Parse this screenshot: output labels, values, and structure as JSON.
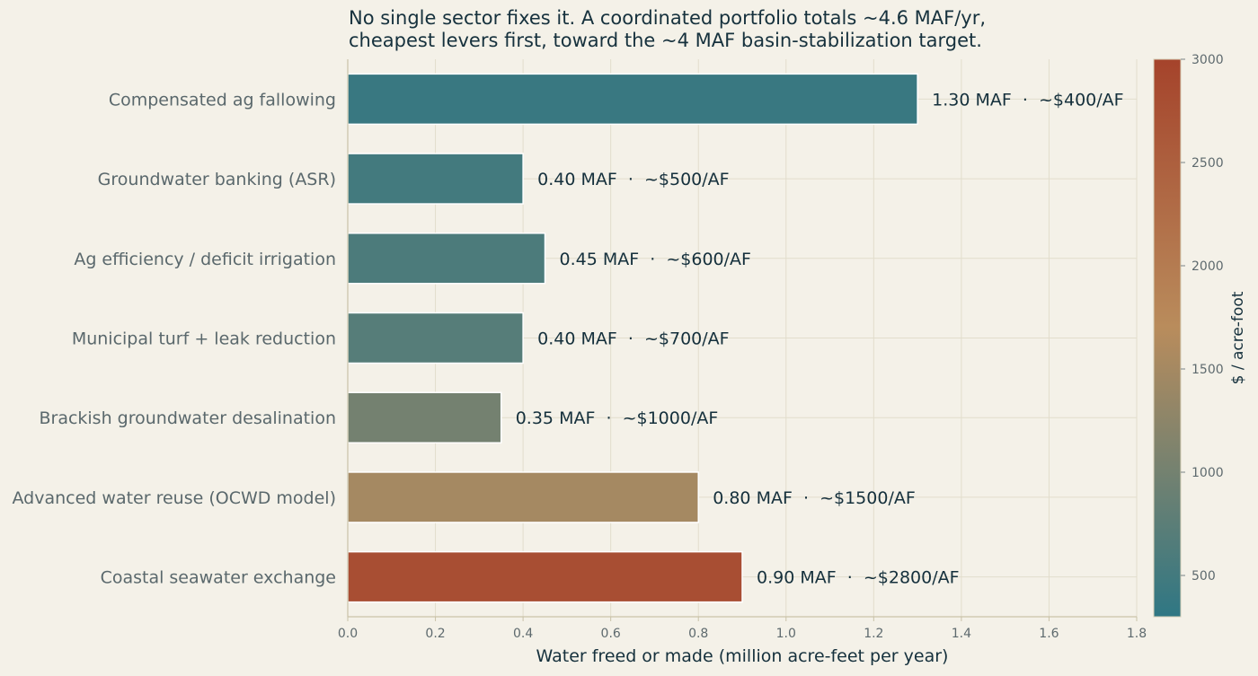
{
  "chart_data": {
    "type": "bar",
    "orientation": "horizontal",
    "title_lines": [
      "No single sector fixes it. A coordinated portfolio totals ~4.6 MAF/yr,",
      "cheapest levers first, toward the ~4 MAF basin-stabilization target."
    ],
    "xlabel": "Water freed or made (million acre-feet per year)",
    "ylabel": "",
    "xlim": [
      0,
      1.8
    ],
    "xticks": [
      "0.0",
      "0.2",
      "0.4",
      "0.6",
      "0.8",
      "1.0",
      "1.2",
      "1.4",
      "1.6",
      "1.8"
    ],
    "grid": true,
    "categories": [
      "Compensated ag fallowing",
      "Groundwater banking (ASR)",
      "Ag efficiency / deficit irrigation",
      "Municipal turf + leak reduction",
      "Brackish groundwater desalination",
      "Advanced water reuse (OCWD model)",
      "Coastal seawater exchange"
    ],
    "values": [
      1.3,
      0.4,
      0.45,
      0.4,
      0.35,
      0.8,
      0.9
    ],
    "cost_per_af": [
      400,
      500,
      600,
      700,
      1000,
      1500,
      2800
    ],
    "data_labels": [
      "1.30 MAF  ·  ~$400/AF",
      "0.40 MAF  ·  ~$500/AF",
      "0.45 MAF  ·  ~$600/AF",
      "0.40 MAF  ·  ~$700/AF",
      "0.35 MAF  ·  ~$1000/AF",
      "0.80 MAF  ·  ~$1500/AF",
      "0.90 MAF  ·  ~$2800/AF"
    ],
    "colorbar": {
      "label": "$ / acre-foot",
      "range": [
        300,
        3000
      ],
      "ticks": [
        "500",
        "1000",
        "1500",
        "2000",
        "2500",
        "3000"
      ],
      "colors": [
        "#2f7784",
        "#b98c5c",
        "#a5432b"
      ]
    }
  }
}
